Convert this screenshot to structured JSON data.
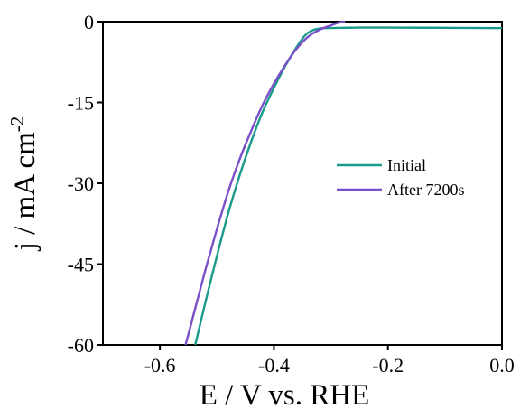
{
  "chart_data": {
    "type": "line",
    "title": "",
    "xlabel": "E / V vs. RHE",
    "ylabel_main": "j / mA cm",
    "ylabel_superscript": "-2",
    "xlim": [
      -0.7,
      0.0
    ],
    "ylim": [
      -60,
      0
    ],
    "x_ticks": [
      -0.6,
      -0.4,
      -0.2,
      0.0
    ],
    "x_tick_labels": [
      "-0.6",
      "-0.4",
      "-0.2",
      "0.0"
    ],
    "y_ticks": [
      0,
      -15,
      -30,
      -45,
      -60
    ],
    "y_tick_labels": [
      "0",
      "-15",
      "-30",
      "-45",
      "-60"
    ],
    "grid": false,
    "legend_position": "right",
    "series": [
      {
        "name": "Initial",
        "color": "#1a9a8a",
        "x": [
          -0.538,
          -0.52,
          -0.5,
          -0.48,
          -0.46,
          -0.44,
          -0.42,
          -0.4,
          -0.38,
          -0.36,
          -0.345,
          -0.33,
          -0.31,
          -0.28,
          -0.25,
          -0.2,
          -0.1,
          0.0
        ],
        "y": [
          -60,
          -52,
          -43.5,
          -35.5,
          -28.5,
          -22.3,
          -16.8,
          -12.3,
          -8.2,
          -4.7,
          -2.5,
          -1.5,
          -1.2,
          -1.15,
          -1.1,
          -1.1,
          -1.15,
          -1.2
        ]
      },
      {
        "name": "After 7200s",
        "color": "#7b4fc9",
        "x": [
          -0.555,
          -0.54,
          -0.52,
          -0.5,
          -0.48,
          -0.46,
          -0.44,
          -0.42,
          -0.4,
          -0.38,
          -0.36,
          -0.34,
          -0.32,
          -0.3,
          -0.285,
          -0.275
        ],
        "y": [
          -60,
          -54,
          -46,
          -38.5,
          -31.5,
          -25.5,
          -20.3,
          -15.5,
          -11.5,
          -8.0,
          -5.0,
          -2.8,
          -1.5,
          -0.7,
          -0.15,
          0.0
        ]
      }
    ]
  }
}
